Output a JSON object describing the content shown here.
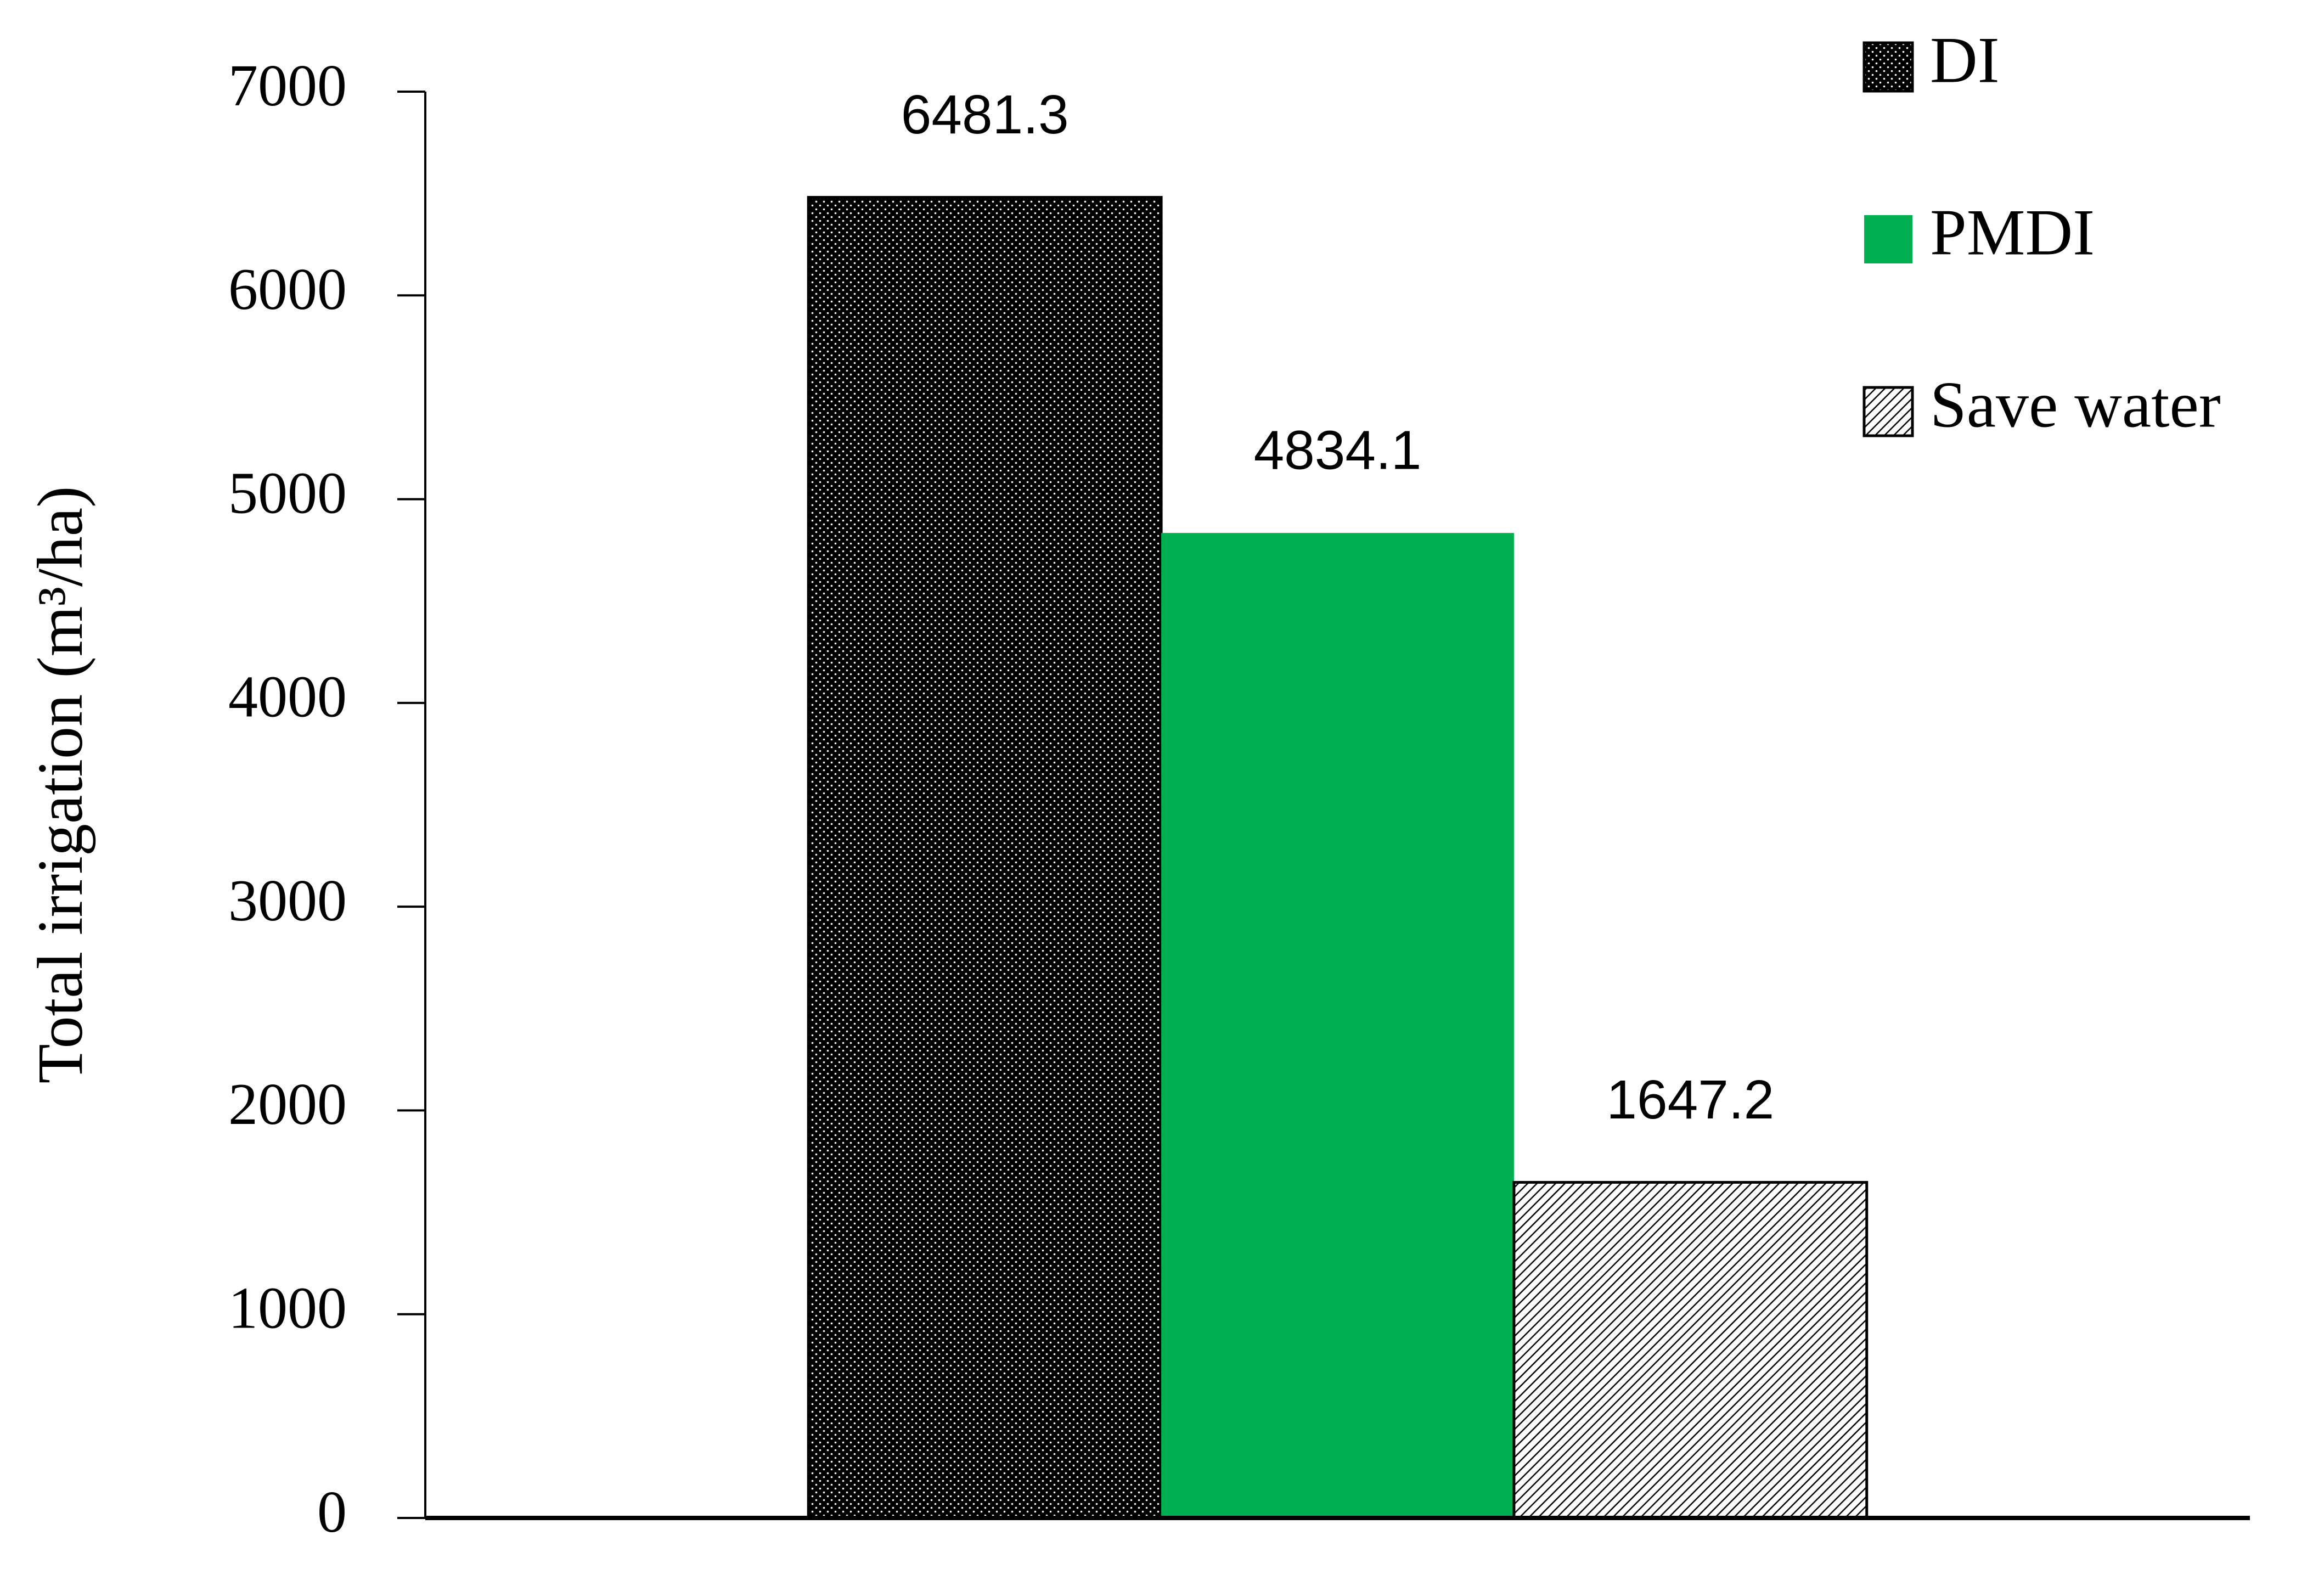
{
  "chart_data": {
    "type": "bar",
    "y_label": "Total irrigation (m³/ha)",
    "categories": [
      null
    ],
    "series": [
      {
        "name": "DI",
        "color": "#000000",
        "pattern": "dots",
        "values": [
          6481.3
        ]
      },
      {
        "name": "PMDI",
        "color": "#00b050",
        "pattern": "solid",
        "values": [
          4834.1
        ]
      },
      {
        "name": "Save water",
        "color": "#000000",
        "pattern": "hatch",
        "values": [
          1647.2
        ]
      }
    ],
    "ylim": [
      0,
      7000
    ],
    "yticks": [
      0,
      1000,
      2000,
      3000,
      4000,
      5000,
      6000,
      7000
    ],
    "grid": false,
    "legend": "top-right",
    "data_labels": true
  }
}
